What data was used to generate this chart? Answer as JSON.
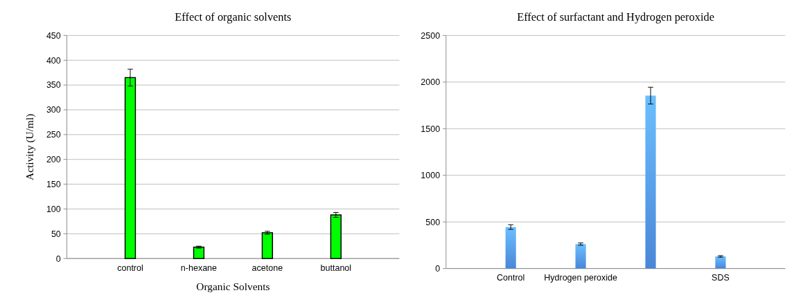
{
  "chart_data": [
    {
      "type": "bar",
      "title": "Effect of organic  solvents",
      "xlabel": "Organic Solvents",
      "ylabel": "Activity (U/ml)",
      "categories": [
        "control",
        "n-hexane",
        "acetone",
        "buttanol"
      ],
      "values": [
        365,
        23,
        52,
        88
      ],
      "errors": [
        17,
        2,
        3,
        5
      ],
      "color": "#00ff00",
      "ylim": [
        0,
        450
      ],
      "yticks": [
        0,
        50,
        100,
        150,
        200,
        250,
        300,
        350,
        400,
        450
      ],
      "grid": "y"
    },
    {
      "type": "bar",
      "title": "Effect of  surfactant and Hydrogen peroxide",
      "categories": [
        "Control",
        "Hydrogen peroxide",
        null,
        "SDS"
      ],
      "values": [
        445,
        262,
        1855,
        130
      ],
      "errors": [
        25,
        12,
        90,
        8
      ],
      "color": "#4a86d8",
      "ylim": [
        0,
        2500
      ],
      "yticks": [
        0,
        500,
        1000,
        1500,
        2000,
        2500
      ],
      "grid": "y"
    }
  ]
}
